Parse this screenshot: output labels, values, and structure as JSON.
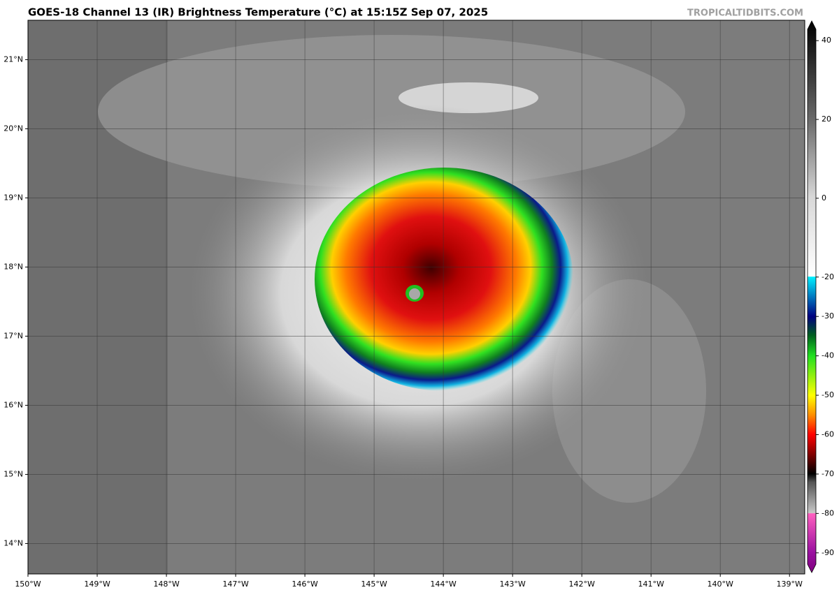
{
  "header": {
    "title": "GOES-18 Channel 13 (IR) Brightness Temperature (°C) at 15:15Z Sep 07, 2025",
    "credit": "TROPICALTIDBITS.COM"
  },
  "map": {
    "xlim": [
      -150,
      -138.78
    ],
    "ylim": [
      13.56,
      21.57
    ],
    "xticks": [
      {
        "value": -150,
        "label": "150°W"
      },
      {
        "value": -149,
        "label": "149°W"
      },
      {
        "value": -148,
        "label": "148°W"
      },
      {
        "value": -147,
        "label": "147°W"
      },
      {
        "value": -146,
        "label": "146°W"
      },
      {
        "value": -145,
        "label": "145°W"
      },
      {
        "value": -144,
        "label": "144°W"
      },
      {
        "value": -143,
        "label": "143°W"
      },
      {
        "value": -142,
        "label": "142°W"
      },
      {
        "value": -141,
        "label": "141°W"
      },
      {
        "value": -140,
        "label": "140°W"
      },
      {
        "value": -139,
        "label": "139°W"
      }
    ],
    "yticks": [
      {
        "value": 14,
        "label": "14°N"
      },
      {
        "value": 15,
        "label": "15°N"
      },
      {
        "value": 16,
        "label": "16°N"
      },
      {
        "value": 17,
        "label": "17°N"
      },
      {
        "value": 18,
        "label": "18°N"
      },
      {
        "value": 19,
        "label": "19°N"
      },
      {
        "value": 20,
        "label": "20°N"
      },
      {
        "value": 21,
        "label": "21°N"
      }
    ],
    "grid": true
  },
  "colorbar": {
    "lim": [
      -95,
      45
    ],
    "ticks": [
      40,
      20,
      0,
      -20,
      -30,
      -40,
      -50,
      -60,
      -70,
      -80,
      -90
    ]
  }
}
